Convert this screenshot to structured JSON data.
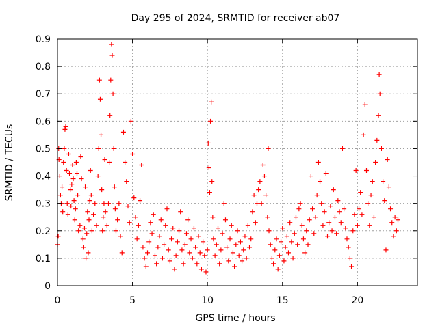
{
  "chart_data": {
    "type": "scatter",
    "title": "Day 295 of 2024, SRMTID for receiver ab07",
    "xlabel": "GPS time / hours",
    "ylabel": "SRMTID / TECUs",
    "xlim": [
      0,
      24
    ],
    "ylim": [
      0,
      0.9
    ],
    "x_ticks": [
      0,
      5,
      10,
      15,
      20
    ],
    "y_ticks": [
      0,
      0.1,
      0.2,
      0.3,
      0.4,
      0.5,
      0.6,
      0.7,
      0.8,
      0.9
    ],
    "x_tick_labels": [
      "0",
      "5",
      "10",
      "15",
      "20"
    ],
    "y_tick_labels": [
      "0",
      "0.1",
      "0.2",
      "0.3",
      "0.4",
      "0.5",
      "0.6",
      "0.7",
      "0.8",
      "0.9"
    ],
    "grid": true,
    "marker": "plus",
    "color": "#ff0000",
    "series": [
      {
        "name": "SRMTID",
        "points": [
          [
            0.0,
            0.15
          ],
          [
            0.05,
            0.18
          ],
          [
            0.08,
            0.5
          ],
          [
            0.1,
            0.46
          ],
          [
            0.15,
            0.4
          ],
          [
            0.2,
            0.33
          ],
          [
            0.25,
            0.3
          ],
          [
            0.3,
            0.36
          ],
          [
            0.35,
            0.27
          ],
          [
            0.4,
            0.45
          ],
          [
            0.45,
            0.5
          ],
          [
            0.5,
            0.57
          ],
          [
            0.55,
            0.58
          ],
          [
            0.6,
            0.42
          ],
          [
            0.65,
            0.3
          ],
          [
            0.7,
            0.26
          ],
          [
            0.75,
            0.48
          ],
          [
            0.8,
            0.41
          ],
          [
            0.85,
            0.35
          ],
          [
            0.9,
            0.29
          ],
          [
            0.95,
            0.37
          ],
          [
            1.0,
            0.44
          ],
          [
            1.05,
            0.39
          ],
          [
            1.1,
            0.31
          ],
          [
            1.15,
            0.24
          ],
          [
            1.2,
            0.28
          ],
          [
            1.25,
            0.45
          ],
          [
            1.3,
            0.41
          ],
          [
            1.35,
            0.33
          ],
          [
            1.4,
            0.2
          ],
          [
            1.5,
            0.22
          ],
          [
            1.55,
            0.47
          ],
          [
            1.6,
            0.39
          ],
          [
            1.7,
            0.17
          ],
          [
            1.75,
            0.14
          ],
          [
            1.8,
            0.21
          ],
          [
            1.85,
            0.36
          ],
          [
            1.9,
            0.1
          ],
          [
            1.95,
            0.19
          ],
          [
            2.0,
            0.27
          ],
          [
            2.05,
            0.12
          ],
          [
            2.1,
            0.24
          ],
          [
            2.15,
            0.31
          ],
          [
            2.2,
            0.42
          ],
          [
            2.25,
            0.33
          ],
          [
            2.3,
            0.2
          ],
          [
            2.4,
            0.26
          ],
          [
            2.5,
            0.3
          ],
          [
            2.6,
            0.22
          ],
          [
            2.7,
            0.4
          ],
          [
            2.75,
            0.5
          ],
          [
            2.8,
            0.75
          ],
          [
            2.85,
            0.68
          ],
          [
            2.9,
            0.55
          ],
          [
            2.95,
            0.35
          ],
          [
            3.0,
            0.2
          ],
          [
            3.05,
            0.25
          ],
          [
            3.1,
            0.3
          ],
          [
            3.15,
            0.46
          ],
          [
            3.2,
            0.27
          ],
          [
            3.3,
            0.22
          ],
          [
            3.4,
            0.3
          ],
          [
            3.45,
            0.45
          ],
          [
            3.5,
            0.62
          ],
          [
            3.55,
            0.75
          ],
          [
            3.6,
            0.88
          ],
          [
            3.65,
            0.84
          ],
          [
            3.7,
            0.7
          ],
          [
            3.75,
            0.5
          ],
          [
            3.8,
            0.36
          ],
          [
            3.85,
            0.28
          ],
          [
            3.9,
            0.2
          ],
          [
            4.0,
            0.24
          ],
          [
            4.1,
            0.3
          ],
          [
            4.2,
            0.18
          ],
          [
            4.3,
            0.12
          ],
          [
            4.4,
            0.56
          ],
          [
            4.5,
            0.45
          ],
          [
            4.6,
            0.38
          ],
          [
            4.7,
            0.29
          ],
          [
            4.8,
            0.23
          ],
          [
            4.9,
            0.6
          ],
          [
            5.0,
            0.48
          ],
          [
            5.1,
            0.32
          ],
          [
            5.2,
            0.25
          ],
          [
            5.3,
            0.17
          ],
          [
            5.4,
            0.22
          ],
          [
            5.5,
            0.31
          ],
          [
            5.6,
            0.44
          ],
          [
            5.7,
            0.14
          ],
          [
            5.8,
            0.1
          ],
          [
            5.9,
            0.07
          ],
          [
            6.0,
            0.12
          ],
          [
            6.1,
            0.16
          ],
          [
            6.2,
            0.23
          ],
          [
            6.3,
            0.19
          ],
          [
            6.4,
            0.26
          ],
          [
            6.5,
            0.11
          ],
          [
            6.6,
            0.08
          ],
          [
            6.7,
            0.14
          ],
          [
            6.8,
            0.18
          ],
          [
            6.9,
            0.24
          ],
          [
            7.0,
            0.1
          ],
          [
            7.1,
            0.15
          ],
          [
            7.2,
            0.22
          ],
          [
            7.3,
            0.28
          ],
          [
            7.4,
            0.13
          ],
          [
            7.5,
            0.09
          ],
          [
            7.6,
            0.17
          ],
          [
            7.7,
            0.21
          ],
          [
            7.8,
            0.06
          ],
          [
            7.9,
            0.11
          ],
          [
            8.0,
            0.16
          ],
          [
            8.1,
            0.2
          ],
          [
            8.2,
            0.27
          ],
          [
            8.3,
            0.13
          ],
          [
            8.4,
            0.08
          ],
          [
            8.5,
            0.15
          ],
          [
            8.6,
            0.19
          ],
          [
            8.7,
            0.24
          ],
          [
            8.8,
            0.12
          ],
          [
            8.9,
            0.17
          ],
          [
            9.0,
            0.1
          ],
          [
            9.1,
            0.21
          ],
          [
            9.2,
            0.14
          ],
          [
            9.3,
            0.08
          ],
          [
            9.4,
            0.18
          ],
          [
            9.5,
            0.12
          ],
          [
            9.6,
            0.06
          ],
          [
            9.7,
            0.16
          ],
          [
            9.8,
            0.11
          ],
          [
            9.9,
            0.05
          ],
          [
            10.0,
            0.13
          ],
          [
            10.05,
            0.52
          ],
          [
            10.1,
            0.43
          ],
          [
            10.15,
            0.34
          ],
          [
            10.2,
            0.6
          ],
          [
            10.25,
            0.67
          ],
          [
            10.3,
            0.38
          ],
          [
            10.35,
            0.25
          ],
          [
            10.4,
            0.17
          ],
          [
            10.5,
            0.11
          ],
          [
            10.6,
            0.15
          ],
          [
            10.7,
            0.21
          ],
          [
            10.8,
            0.08
          ],
          [
            10.9,
            0.13
          ],
          [
            11.0,
            0.19
          ],
          [
            11.1,
            0.3
          ],
          [
            11.2,
            0.24
          ],
          [
            11.3,
            0.14
          ],
          [
            11.4,
            0.09
          ],
          [
            11.5,
            0.17
          ],
          [
            11.6,
            0.22
          ],
          [
            11.7,
            0.12
          ],
          [
            11.8,
            0.07
          ],
          [
            11.9,
            0.15
          ],
          [
            12.0,
            0.2
          ],
          [
            12.1,
            0.11
          ],
          [
            12.2,
            0.16
          ],
          [
            12.3,
            0.09
          ],
          [
            12.4,
            0.13
          ],
          [
            12.5,
            0.18
          ],
          [
            12.6,
            0.1
          ],
          [
            12.7,
            0.22
          ],
          [
            12.8,
            0.14
          ],
          [
            12.9,
            0.17
          ],
          [
            13.0,
            0.27
          ],
          [
            13.1,
            0.33
          ],
          [
            13.2,
            0.23
          ],
          [
            13.3,
            0.3
          ],
          [
            13.4,
            0.35
          ],
          [
            13.5,
            0.38
          ],
          [
            13.6,
            0.3
          ],
          [
            13.7,
            0.44
          ],
          [
            13.8,
            0.4
          ],
          [
            13.9,
            0.33
          ],
          [
            14.0,
            0.25
          ],
          [
            14.05,
            0.5
          ],
          [
            14.1,
            0.2
          ],
          [
            14.2,
            0.15
          ],
          [
            14.3,
            0.1
          ],
          [
            14.4,
            0.08
          ],
          [
            14.5,
            0.13
          ],
          [
            14.6,
            0.17
          ],
          [
            14.7,
            0.06
          ],
          [
            14.8,
            0.11
          ],
          [
            14.9,
            0.16
          ],
          [
            15.0,
            0.21
          ],
          [
            15.1,
            0.09
          ],
          [
            15.2,
            0.14
          ],
          [
            15.3,
            0.18
          ],
          [
            15.4,
            0.12
          ],
          [
            15.5,
            0.23
          ],
          [
            15.6,
            0.16
          ],
          [
            15.7,
            0.1
          ],
          [
            15.8,
            0.19
          ],
          [
            15.9,
            0.25
          ],
          [
            16.0,
            0.15
          ],
          [
            16.1,
            0.28
          ],
          [
            16.2,
            0.3
          ],
          [
            16.3,
            0.22
          ],
          [
            16.4,
            0.17
          ],
          [
            16.5,
            0.12
          ],
          [
            16.6,
            0.2
          ],
          [
            16.7,
            0.15
          ],
          [
            16.8,
            0.24
          ],
          [
            16.9,
            0.4
          ],
          [
            17.0,
            0.28
          ],
          [
            17.1,
            0.19
          ],
          [
            17.2,
            0.25
          ],
          [
            17.3,
            0.33
          ],
          [
            17.4,
            0.45
          ],
          [
            17.5,
            0.38
          ],
          [
            17.6,
            0.3
          ],
          [
            17.7,
            0.22
          ],
          [
            17.8,
            0.27
          ],
          [
            17.9,
            0.41
          ],
          [
            18.0,
            0.18
          ],
          [
            18.1,
            0.23
          ],
          [
            18.2,
            0.29
          ],
          [
            18.3,
            0.2
          ],
          [
            18.4,
            0.35
          ],
          [
            18.5,
            0.25
          ],
          [
            18.6,
            0.19
          ],
          [
            18.7,
            0.31
          ],
          [
            18.8,
            0.27
          ],
          [
            18.9,
            0.23
          ],
          [
            19.0,
            0.5
          ],
          [
            19.1,
            0.28
          ],
          [
            19.2,
            0.21
          ],
          [
            19.3,
            0.17
          ],
          [
            19.4,
            0.14
          ],
          [
            19.5,
            0.1
          ],
          [
            19.6,
            0.07
          ],
          [
            19.7,
            0.2
          ],
          [
            19.8,
            0.26
          ],
          [
            19.9,
            0.42
          ],
          [
            20.0,
            0.22
          ],
          [
            20.1,
            0.28
          ],
          [
            20.2,
            0.34
          ],
          [
            20.3,
            0.26
          ],
          [
            20.4,
            0.55
          ],
          [
            20.5,
            0.66
          ],
          [
            20.6,
            0.42
          ],
          [
            20.7,
            0.3
          ],
          [
            20.8,
            0.22
          ],
          [
            20.9,
            0.33
          ],
          [
            21.0,
            0.38
          ],
          [
            21.1,
            0.25
          ],
          [
            21.2,
            0.45
          ],
          [
            21.3,
            0.53
          ],
          [
            21.4,
            0.62
          ],
          [
            21.45,
            0.77
          ],
          [
            21.5,
            0.7
          ],
          [
            21.6,
            0.5
          ],
          [
            21.7,
            0.38
          ],
          [
            21.8,
            0.31
          ],
          [
            21.9,
            0.13
          ],
          [
            22.0,
            0.46
          ],
          [
            22.1,
            0.36
          ],
          [
            22.2,
            0.28
          ],
          [
            22.3,
            0.23
          ],
          [
            22.4,
            0.18
          ],
          [
            22.5,
            0.25
          ],
          [
            22.6,
            0.2
          ],
          [
            22.7,
            0.24
          ]
        ]
      }
    ]
  }
}
